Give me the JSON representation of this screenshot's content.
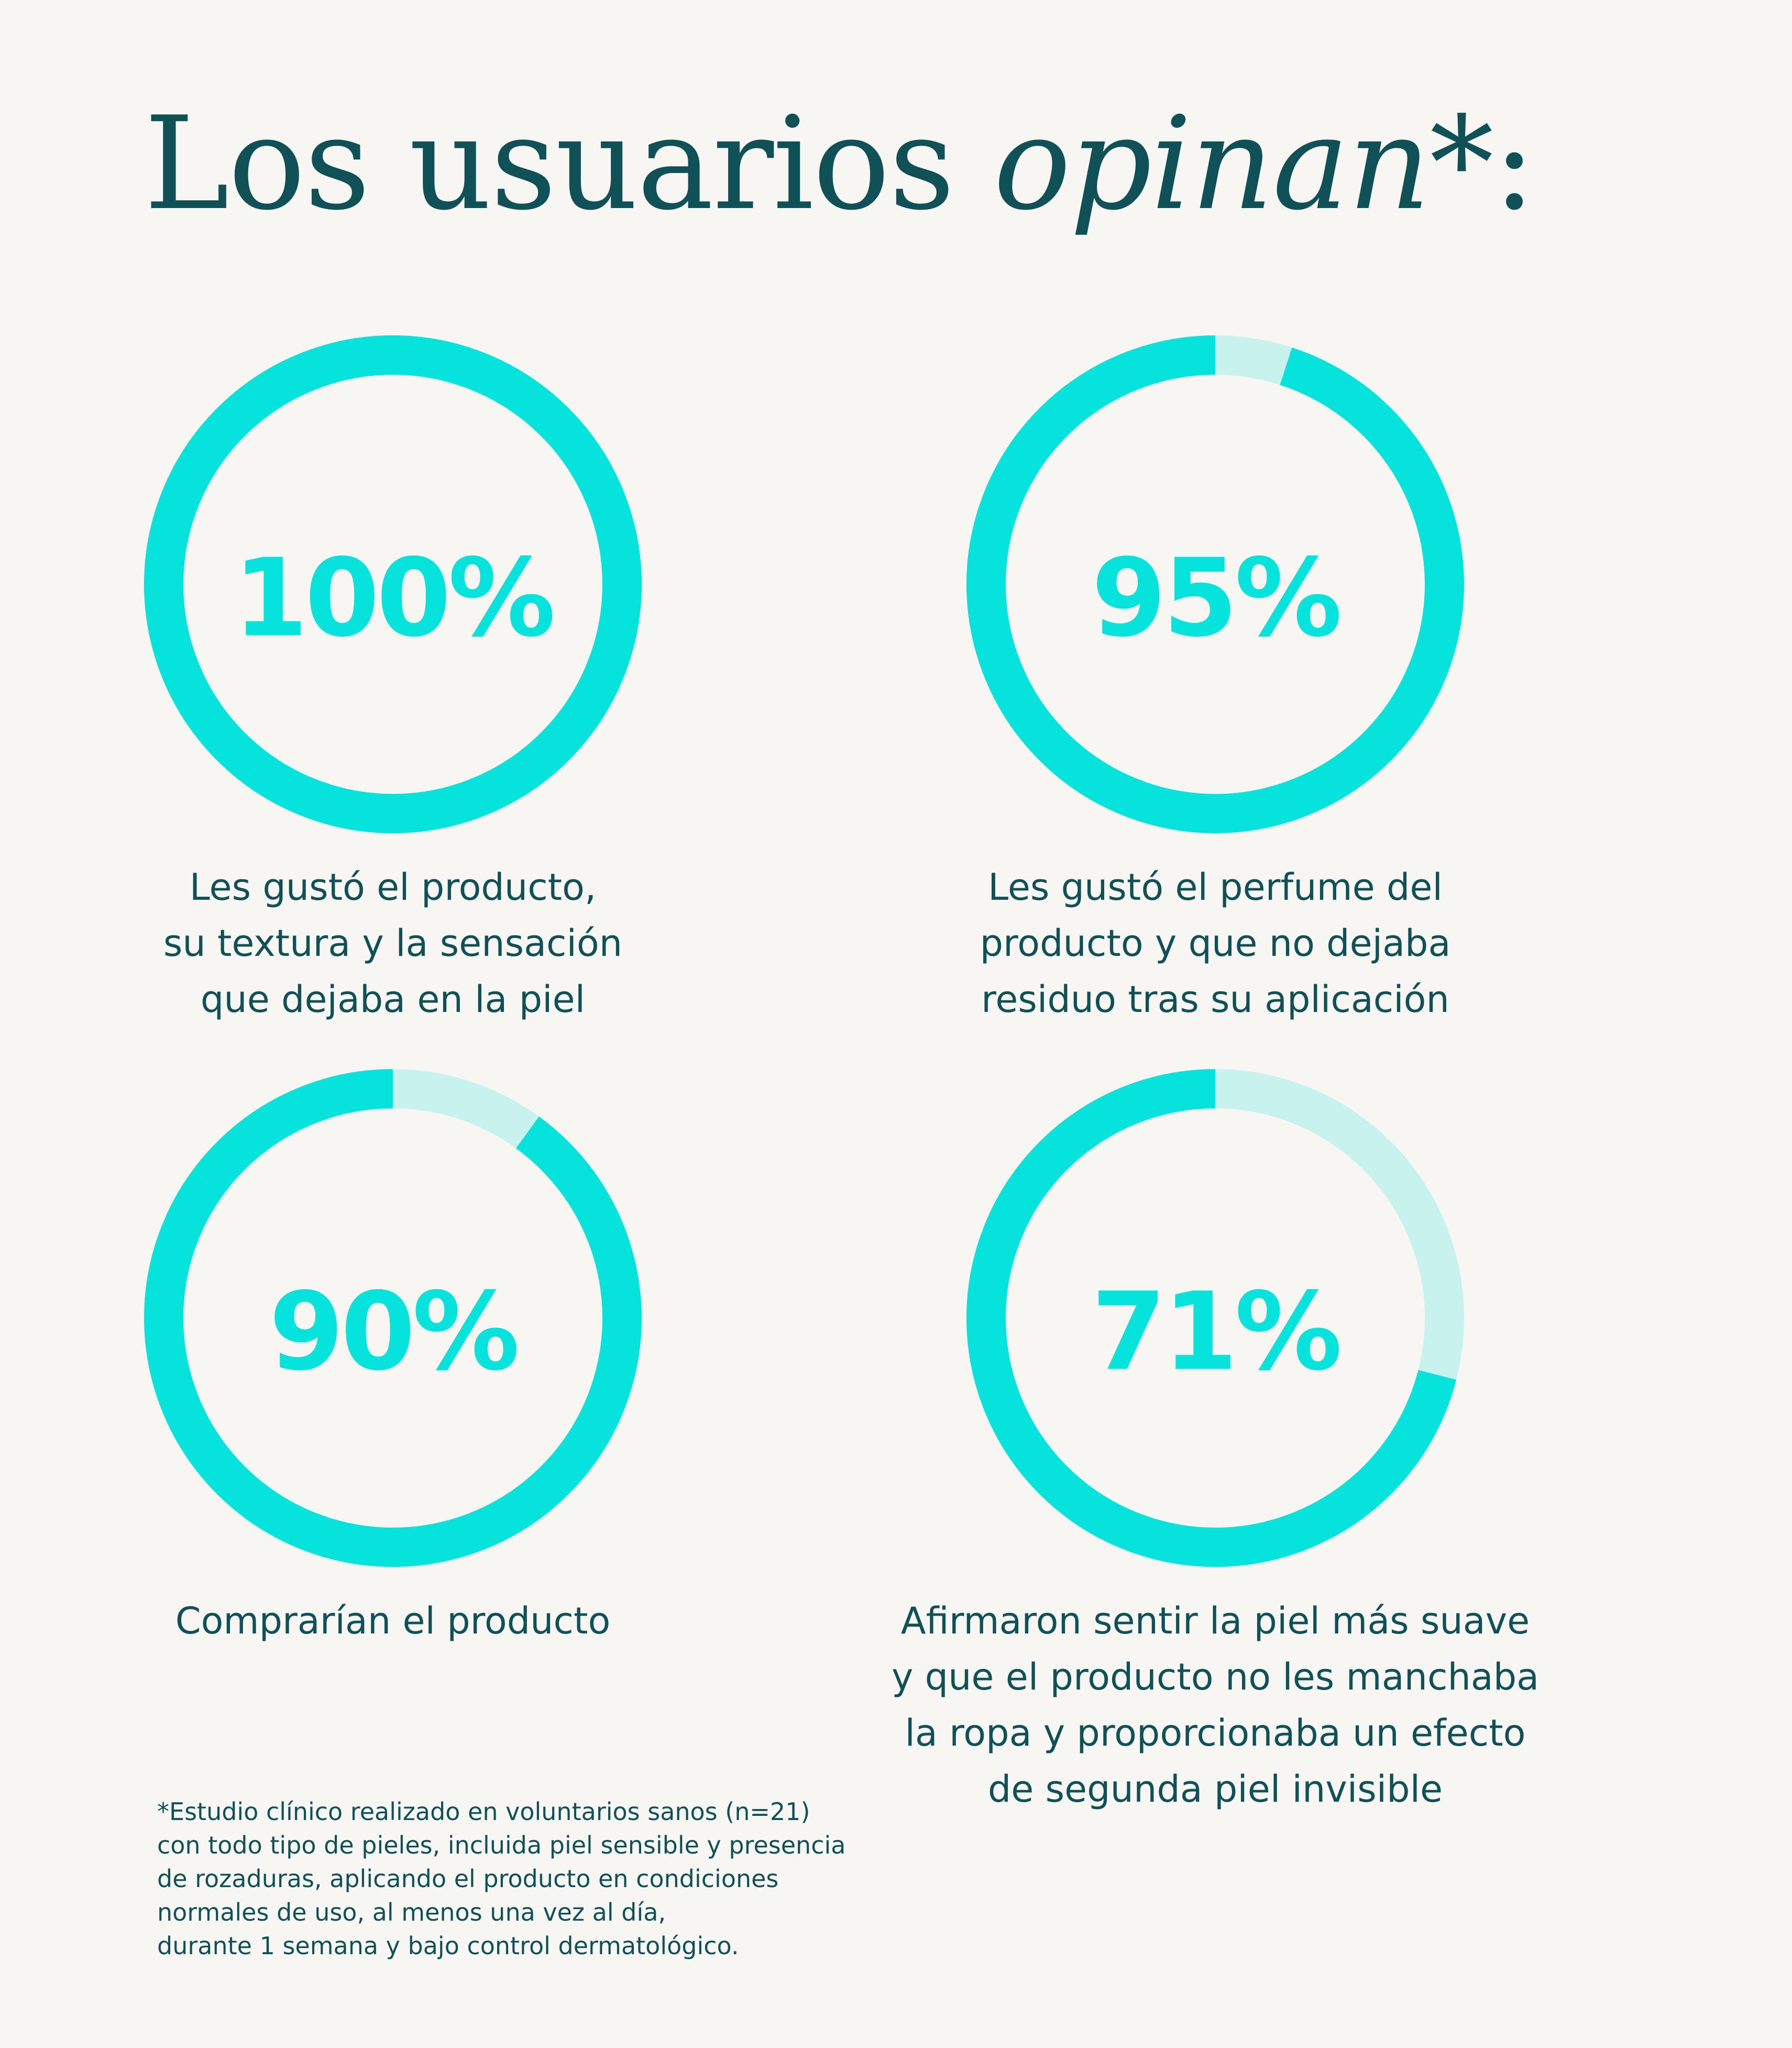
{
  "title": {
    "regular": "Los usuarios ",
    "italic": "opinan",
    "suffix": "*:"
  },
  "colors": {
    "ring_filled": "#06e3dc",
    "ring_track": "#c8f2ee",
    "text_dark": "#0f5157",
    "background": "#f7f6f3"
  },
  "chart_data": [
    {
      "type": "pie",
      "value": 100,
      "label": "100%",
      "description": [
        "Les gustó el producto,",
        "su textura y la sensación",
        "que dejaba en la piel"
      ]
    },
    {
      "type": "pie",
      "value": 95,
      "label": "95%",
      "description": [
        "Les gustó el perfume del",
        "producto y que no dejaba",
        "residuo tras su aplicación"
      ]
    },
    {
      "type": "pie",
      "value": 90,
      "label": "90%",
      "description": [
        "Comprarían el producto"
      ]
    },
    {
      "type": "pie",
      "value": 71,
      "label": "71%",
      "description": [
        "Afirmaron sentir la piel más suave",
        "y que el producto no les manchaba",
        "la ropa y proporcionaba un efecto",
        "de segunda piel invisible"
      ]
    }
  ],
  "footnote": [
    "*Estudio clínico realizado en voluntarios sanos (n=21)",
    "con todo tipo de pieles, incluida piel sensible y presencia",
    "de rozaduras, aplicando el producto en condiciones",
    "normales de uso, al menos una vez al día,",
    "durante 1 semana y bajo control dermatológico."
  ]
}
